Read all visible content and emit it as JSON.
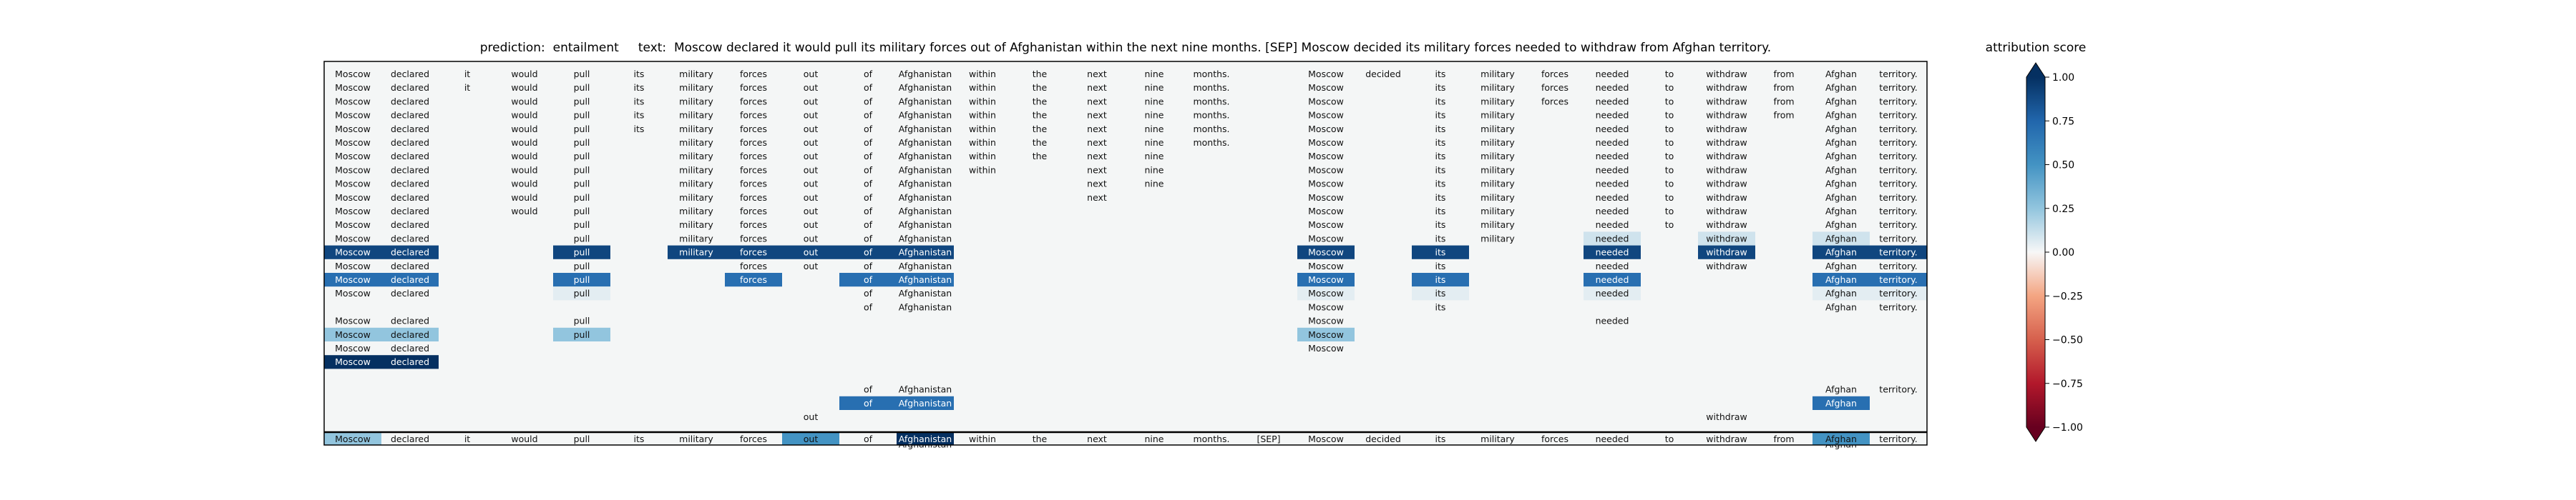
{
  "header": {
    "prediction_label": "prediction:",
    "prediction": "entailment",
    "text_label": "text:",
    "text": "Moscow declared it would pull its military forces out of Afghanistan within the next nine months. [SEP] Moscow decided its military forces needed to withdraw from Afghan territory."
  },
  "colorbar": {
    "title": "attribution score",
    "ticks": [
      "1.00",
      "0.75",
      "0.50",
      "0.25",
      "0.00",
      "−0.25",
      "−0.50",
      "−0.75",
      "−1.00"
    ],
    "tick_values": [
      1.0,
      0.75,
      0.5,
      0.25,
      0.0,
      -0.25,
      -0.5,
      -0.75,
      -1.0
    ]
  },
  "colors": {
    "max_positive": "#053061",
    "positive": "#2166ac",
    "neutral": "#f7f7f7",
    "negative": "#b2182b",
    "max_negative": "#67001f"
  },
  "chart_data": {
    "type": "heatmap",
    "tokens": [
      "Moscow",
      "declared",
      "it",
      "would",
      "pull",
      "its",
      "military",
      "forces",
      "out",
      "of",
      "Afghanistan",
      "within",
      "the",
      "next",
      "nine",
      "months.",
      "[SEP]",
      "Moscow",
      "decided",
      "its",
      "military",
      "forces",
      "needed",
      "to",
      "withdraw",
      "from",
      "Afghan",
      "territory."
    ],
    "vmin": -1.0,
    "vmax": 1.0,
    "rows": [
      {
        "tokens": [
          0,
          1,
          2,
          3,
          4,
          5,
          6,
          7,
          8,
          9,
          10,
          11,
          12,
          13,
          14,
          15,
          17,
          18,
          19,
          20,
          21,
          22,
          23,
          24,
          25,
          26,
          27
        ],
        "scores": {}
      },
      {
        "tokens": [
          0,
          1,
          2,
          3,
          4,
          5,
          6,
          7,
          8,
          9,
          10,
          11,
          12,
          13,
          14,
          15,
          17,
          19,
          20,
          21,
          22,
          23,
          24,
          25,
          26,
          27
        ],
        "scores": {}
      },
      {
        "tokens": [
          0,
          1,
          3,
          4,
          5,
          6,
          7,
          8,
          9,
          10,
          11,
          12,
          13,
          14,
          15,
          17,
          19,
          20,
          21,
          22,
          23,
          24,
          25,
          26,
          27
        ],
        "scores": {}
      },
      {
        "tokens": [
          0,
          1,
          3,
          4,
          5,
          6,
          7,
          8,
          9,
          10,
          11,
          12,
          13,
          14,
          15,
          17,
          19,
          20,
          22,
          23,
          24,
          25,
          26,
          27
        ],
        "scores": {}
      },
      {
        "tokens": [
          0,
          1,
          3,
          4,
          5,
          6,
          7,
          8,
          9,
          10,
          11,
          12,
          13,
          14,
          15,
          17,
          19,
          20,
          22,
          23,
          24,
          26,
          27
        ],
        "scores": {}
      },
      {
        "tokens": [
          0,
          1,
          3,
          4,
          6,
          7,
          8,
          9,
          10,
          11,
          12,
          13,
          14,
          15,
          17,
          19,
          20,
          22,
          23,
          24,
          26,
          27
        ],
        "scores": {}
      },
      {
        "tokens": [
          0,
          1,
          3,
          4,
          6,
          7,
          8,
          9,
          10,
          11,
          12,
          13,
          14,
          17,
          19,
          20,
          22,
          23,
          24,
          26,
          27
        ],
        "scores": {}
      },
      {
        "tokens": [
          0,
          1,
          3,
          4,
          6,
          7,
          8,
          9,
          10,
          11,
          13,
          14,
          17,
          19,
          20,
          22,
          23,
          24,
          26,
          27
        ],
        "scores": {}
      },
      {
        "tokens": [
          0,
          1,
          3,
          4,
          6,
          7,
          8,
          9,
          10,
          13,
          14,
          17,
          19,
          20,
          22,
          23,
          24,
          26,
          27
        ],
        "scores": {}
      },
      {
        "tokens": [
          0,
          1,
          3,
          4,
          6,
          7,
          8,
          9,
          10,
          13,
          17,
          19,
          20,
          22,
          23,
          24,
          26,
          27
        ],
        "scores": {}
      },
      {
        "tokens": [
          0,
          1,
          3,
          4,
          6,
          7,
          8,
          9,
          10,
          17,
          19,
          20,
          22,
          23,
          24,
          26,
          27
        ],
        "scores": {}
      },
      {
        "tokens": [
          0,
          1,
          4,
          6,
          7,
          8,
          9,
          10,
          17,
          19,
          20,
          22,
          23,
          24,
          26,
          27
        ],
        "scores": {}
      },
      {
        "tokens": [
          0,
          1,
          4,
          6,
          7,
          8,
          9,
          10,
          17,
          19,
          20,
          22,
          24,
          26,
          27
        ],
        "scores": {
          "22": 0.1,
          "24": 0.1,
          "26": 0.1
        }
      },
      {
        "tokens": [
          0,
          1,
          4,
          6,
          7,
          8,
          9,
          10,
          17,
          19,
          22,
          24,
          26,
          27
        ],
        "scores": {
          "0": 0.9,
          "1": 0.9,
          "4": 0.9,
          "6": 0.9,
          "7": 0.9,
          "8": 0.9,
          "9": 0.9,
          "10": 0.9,
          "17": 0.9,
          "19": 0.9,
          "22": 0.9,
          "24": 0.9,
          "26": 0.9,
          "27": 0.9
        }
      },
      {
        "tokens": [
          0,
          1,
          4,
          7,
          8,
          9,
          10,
          17,
          19,
          22,
          24,
          26,
          27
        ],
        "scores": {}
      },
      {
        "tokens": [
          0,
          1,
          4,
          7,
          9,
          10,
          17,
          19,
          22,
          26,
          27
        ],
        "scores": {
          "0": 0.7,
          "1": 0.7,
          "4": 0.7,
          "7": 0.7,
          "9": 0.7,
          "10": 0.7,
          "17": 0.7,
          "19": 0.7,
          "22": 0.7,
          "26": 0.7,
          "27": 0.7
        }
      },
      {
        "tokens": [
          0,
          1,
          4,
          9,
          10,
          17,
          19,
          22,
          26,
          27
        ],
        "scores": {
          "4": 0.05,
          "17": 0.05,
          "19": 0.05,
          "22": 0.05,
          "26": 0.05,
          "27": 0.05
        }
      },
      {
        "tokens": [
          9,
          10,
          17,
          19,
          26,
          27
        ],
        "scores": {}
      },
      {
        "tokens": [
          0,
          1,
          4,
          17,
          22
        ],
        "scores": {}
      },
      {
        "tokens": [
          0,
          1,
          4,
          17
        ],
        "scores": {
          "0": 0.25,
          "1": 0.25,
          "4": 0.25,
          "17": 0.25
        }
      },
      {
        "tokens": [
          0,
          1,
          17
        ],
        "scores": {}
      },
      {
        "tokens": [
          0,
          1
        ],
        "scores": {
          "0": 1.0,
          "1": 1.0
        }
      },
      {
        "tokens": [],
        "scores": {}
      },
      {
        "tokens": [
          9,
          10,
          26,
          27
        ],
        "scores": {}
      },
      {
        "tokens": [
          9,
          10,
          26
        ],
        "scores": {
          "9": 0.7,
          "10": 0.7,
          "26": 0.7
        }
      },
      {
        "tokens": [
          8,
          24
        ],
        "scores": {}
      },
      {
        "tokens": [],
        "scores": {}
      },
      {
        "tokens": [
          10,
          26
        ],
        "scores": {}
      }
    ],
    "original_scores": [
      0.25,
      0.0,
      0.0,
      0.0,
      0.0,
      0.0,
      0.0,
      0.0,
      0.5,
      0.0,
      1.0,
      0.0,
      0.0,
      0.0,
      0.0,
      0.0,
      0.0,
      0.0,
      0.0,
      0.0,
      0.0,
      0.0,
      0.0,
      0.0,
      0.0,
      0.0,
      0.5,
      0.0
    ]
  }
}
